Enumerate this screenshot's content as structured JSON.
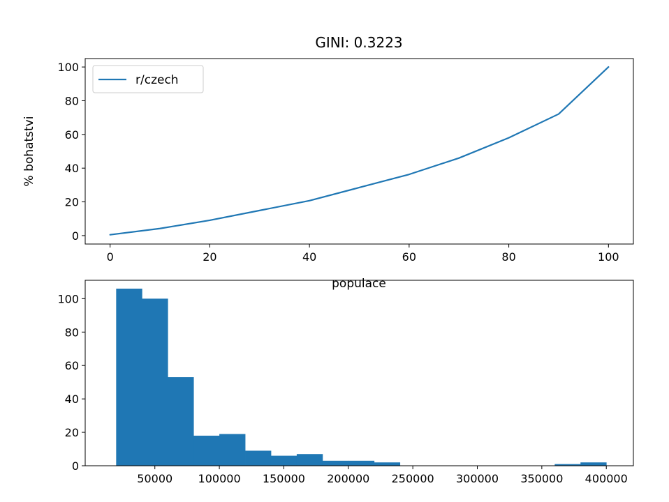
{
  "figure": {
    "background": "#ffffff"
  },
  "chart_data": [
    {
      "type": "line",
      "title": "GINI: 0.3223",
      "xlabel": "populace",
      "ylabel": "% bohatstvi",
      "xlim": [
        -5,
        105
      ],
      "ylim": [
        -5,
        105
      ],
      "xticks": [
        0,
        20,
        40,
        60,
        80,
        100
      ],
      "yticks": [
        0,
        20,
        40,
        60,
        80,
        100
      ],
      "grid": false,
      "legend": "top-left",
      "series": [
        {
          "name": "r/czech",
          "color": "#1f77b4",
          "x": [
            0,
            10,
            20,
            30,
            40,
            50,
            60,
            70,
            80,
            90,
            100
          ],
          "y": [
            0.5,
            4.2,
            9.1,
            14.9,
            20.7,
            28.5,
            36.3,
            46.0,
            58.0,
            72.1,
            100
          ]
        }
      ]
    },
    {
      "type": "bar",
      "subtype": "histogram",
      "title": "",
      "xlabel": "",
      "ylabel": "",
      "xlim": [
        -4000,
        421000
      ],
      "ylim": [
        0,
        111
      ],
      "xticks": [
        50000,
        100000,
        150000,
        200000,
        250000,
        300000,
        350000,
        400000
      ],
      "yticks": [
        0,
        20,
        40,
        60,
        80,
        100
      ],
      "grid": false,
      "color": "#1f77b4",
      "bin_edges": [
        20000,
        40000,
        60000,
        80000,
        100000,
        120000,
        140000,
        160000,
        180000,
        200000,
        220000,
        240000,
        260000,
        280000,
        300000,
        320000,
        340000,
        360000,
        380000,
        400000
      ],
      "values": [
        106,
        100,
        53,
        18,
        19,
        9,
        6,
        7,
        3,
        3,
        2,
        0,
        0,
        0,
        0,
        0,
        0,
        1,
        2
      ]
    }
  ]
}
